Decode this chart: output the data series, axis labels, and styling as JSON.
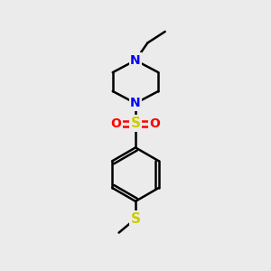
{
  "background_color": "#ebebeb",
  "atom_colors": {
    "N": "#0000ff",
    "S": "#cccc00",
    "O": "#ff0000",
    "C": "#000000"
  },
  "bond_color": "#000000",
  "bond_width": 1.8,
  "figsize": [
    3.0,
    3.0
  ],
  "dpi": 100,
  "xlim": [
    0,
    10
  ],
  "ylim": [
    0,
    10
  ]
}
